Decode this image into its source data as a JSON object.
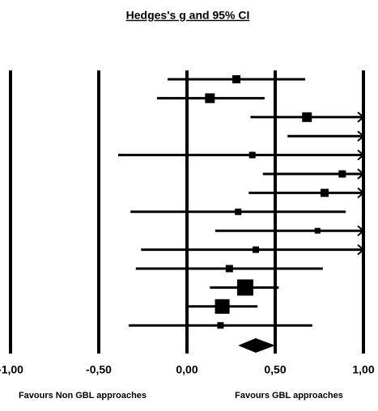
{
  "chart_data": {
    "type": "forest",
    "title": "Hedges's g and 95% CI",
    "xlim": [
      -1,
      1
    ],
    "xticks": [
      {
        "value": -1,
        "label": "-1,00"
      },
      {
        "value": -0.5,
        "label": "-0,50"
      },
      {
        "value": 0,
        "label": "0,00"
      },
      {
        "value": 0.5,
        "label": "0,50"
      },
      {
        "value": 1,
        "label": "1,00"
      }
    ],
    "values": [
      0.28,
      0.13,
      0.68,
      null,
      0.37,
      0.88,
      0.78,
      0.29,
      0.74,
      0.39,
      0.24,
      0.33,
      0.2,
      0.19
    ],
    "lower": [
      -0.11,
      -0.17,
      0.36,
      0.57,
      -0.39,
      0.43,
      0.35,
      -0.32,
      0.16,
      -0.26,
      -0.29,
      0.13,
      0.0,
      -0.33
    ],
    "upper": [
      0.67,
      0.44,
      null,
      null,
      null,
      null,
      null,
      0.9,
      null,
      null,
      0.77,
      0.52,
      0.4,
      0.71
    ],
    "weights": [
      10,
      12,
      12,
      null,
      8,
      9,
      10,
      8,
      7,
      8,
      9,
      20,
      18,
      8
    ],
    "summary": {
      "value": 0.39,
      "lower": 0.29,
      "upper": 0.5
    },
    "annotations": [
      "Favours Non GBL approaches",
      "Favours GBL approaches"
    ],
    "color": "#000000"
  }
}
